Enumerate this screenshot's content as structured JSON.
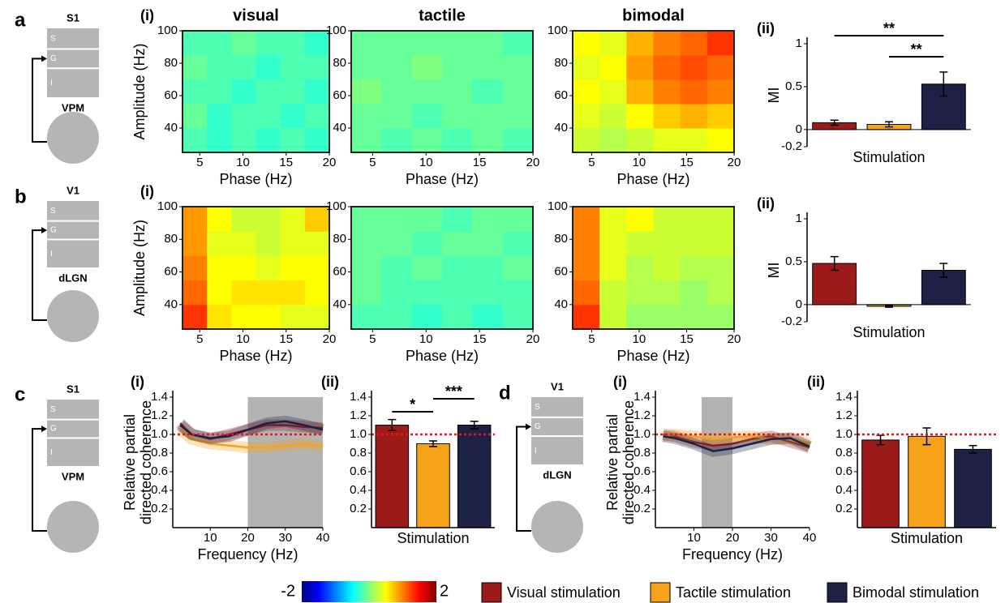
{
  "schematics": [
    {
      "panel": "a",
      "area": "S1",
      "layers": [
        "S",
        "G",
        "I"
      ],
      "nucleus": "VPM"
    },
    {
      "panel": "b",
      "area": "V1",
      "layers": [
        "S",
        "G",
        "I"
      ],
      "nucleus": "dLGN"
    },
    {
      "panel": "c",
      "area": "S1",
      "layers": [
        "S",
        "G",
        "I"
      ],
      "nucleus": "VPM"
    },
    {
      "panel": "d",
      "area": "V1",
      "layers": [
        "S",
        "G",
        "I"
      ],
      "nucleus": "dLGN"
    }
  ],
  "chart_data": [
    {
      "type": "heatmap",
      "title": "visual",
      "panel_label": "(i)",
      "xlabel": "Phase (Hz)",
      "ylabel": "Amplitude (Hz)",
      "xlim": [
        3,
        20
      ],
      "ylim": [
        25,
        100
      ],
      "xticks": [
        5,
        10,
        15,
        20
      ],
      "yticks": [
        40,
        60,
        80,
        100
      ],
      "values": [
        [
          -0.2,
          -0.3,
          -0.2,
          -0.3,
          -0.2,
          -0.3
        ],
        [
          -0.1,
          -0.3,
          -0.2,
          -0.2,
          -0.3,
          -0.2
        ],
        [
          -0.2,
          -0.2,
          -0.3,
          -0.2,
          -0.2,
          -0.3
        ],
        [
          -0.1,
          -0.2,
          -0.2,
          -0.3,
          -0.2,
          -0.2
        ],
        [
          -0.2,
          -0.2,
          -0.1,
          -0.2,
          -0.2,
          -0.3
        ]
      ]
    },
    {
      "type": "heatmap",
      "title": "tactile",
      "xlabel": "Phase (Hz)",
      "xlim": [
        3,
        20
      ],
      "ylim": [
        25,
        100
      ],
      "xticks": [
        5,
        10,
        15,
        20
      ],
      "yticks": [
        40,
        60,
        80,
        100
      ],
      "values": [
        [
          -0.1,
          -0.2,
          -0.1,
          -0.2,
          -0.1,
          -0.2
        ],
        [
          -0.1,
          -0.1,
          -0.2,
          -0.1,
          -0.1,
          -0.1
        ],
        [
          0,
          -0.1,
          -0.1,
          -0.1,
          -0.2,
          -0.1
        ],
        [
          -0.1,
          -0.1,
          0,
          -0.1,
          -0.1,
          -0.1
        ],
        [
          -0.1,
          -0.1,
          -0.1,
          -0.1,
          -0.1,
          -0.2
        ]
      ]
    },
    {
      "type": "heatmap",
      "title": "bimodal",
      "xlabel": "Phase (Hz)",
      "xlim": [
        3,
        20
      ],
      "ylim": [
        25,
        100
      ],
      "xticks": [
        5,
        10,
        15,
        20
      ],
      "yticks": [
        40,
        60,
        80,
        100
      ],
      "values": [
        [
          0.3,
          0.2,
          0.3,
          0.4,
          0.4,
          0.5
        ],
        [
          0.4,
          0.3,
          0.5,
          0.7,
          0.8,
          0.7
        ],
        [
          0.5,
          0.4,
          0.8,
          1.0,
          1.1,
          1.0
        ],
        [
          0.4,
          0.5,
          0.9,
          1.1,
          1.2,
          1.1
        ],
        [
          0.5,
          0.4,
          0.8,
          1.0,
          1.1,
          1.3
        ]
      ]
    },
    {
      "type": "heatmap",
      "panel_label": "(i)",
      "xlabel": "Phase (Hz)",
      "ylabel": "Amplitude (Hz)",
      "xlim": [
        3,
        20
      ],
      "ylim": [
        25,
        100
      ],
      "xticks": [
        5,
        10,
        15,
        20
      ],
      "yticks": [
        40,
        60,
        80,
        100
      ],
      "values": [
        [
          1.3,
          0.6,
          0.5,
          0.5,
          0.4,
          0.4
        ],
        [
          1.1,
          0.5,
          0.6,
          0.6,
          0.6,
          0.5
        ],
        [
          1.0,
          0.5,
          0.5,
          0.4,
          0.5,
          0.5
        ],
        [
          0.9,
          0.4,
          0.4,
          0.3,
          0.4,
          0.4
        ],
        [
          0.9,
          0.5,
          0.3,
          0.3,
          0.4,
          0.7
        ]
      ]
    },
    {
      "type": "heatmap",
      "xlabel": "Phase (Hz)",
      "xlim": [
        3,
        20
      ],
      "ylim": [
        25,
        100
      ],
      "xticks": [
        5,
        10,
        15,
        20
      ],
      "yticks": [
        40,
        60,
        80,
        100
      ],
      "values": [
        [
          -0.2,
          -0.2,
          -0.3,
          -0.2,
          -0.3,
          -0.2
        ],
        [
          -0.1,
          -0.2,
          -0.2,
          -0.2,
          -0.2,
          -0.2
        ],
        [
          -0.1,
          -0.2,
          -0.1,
          -0.2,
          -0.2,
          -0.1
        ],
        [
          -0.1,
          -0.1,
          -0.2,
          -0.1,
          -0.1,
          -0.2
        ],
        [
          -0.1,
          -0.1,
          -0.1,
          -0.2,
          -0.1,
          -0.1
        ]
      ]
    },
    {
      "type": "heatmap",
      "xlabel": "Phase (Hz)",
      "xlim": [
        3,
        20
      ],
      "ylim": [
        25,
        100
      ],
      "xticks": [
        5,
        10,
        15,
        20
      ],
      "yticks": [
        40,
        60,
        80,
        100
      ],
      "values": [
        [
          1.3,
          0.3,
          0.1,
          0.1,
          0.1,
          0.1
        ],
        [
          1.1,
          0.3,
          0.2,
          0.2,
          0.1,
          0.2
        ],
        [
          1.0,
          0.4,
          0.2,
          0.3,
          0.2,
          0.2
        ],
        [
          1.0,
          0.4,
          0.3,
          0.3,
          0.3,
          0.3
        ],
        [
          1.0,
          0.4,
          0.5,
          0.3,
          0.3,
          0.3
        ]
      ]
    },
    {
      "type": "bar",
      "panel_label": "(ii)",
      "xlabel": "Stimulation",
      "ylabel": "MI",
      "ylim": [
        -0.2,
        1
      ],
      "yticks": [
        -0.2,
        0,
        0.5,
        1
      ],
      "values": [
        0.08,
        0.06,
        0.53
      ],
      "errors": [
        0.03,
        0.03,
        0.14
      ],
      "colors": [
        "#9b1b1b",
        "#f7a21b",
        "#1c2145"
      ],
      "significance": [
        {
          "label": "**",
          "from": 0,
          "to": 2
        },
        {
          "label": "**",
          "from": 1,
          "to": 2
        }
      ]
    },
    {
      "type": "bar",
      "panel_label": "(ii)",
      "xlabel": "Stimulation",
      "ylabel": "MI",
      "ylim": [
        -0.2,
        1
      ],
      "yticks": [
        -0.2,
        0,
        0.5,
        1
      ],
      "values": [
        0.48,
        -0.02,
        0.4
      ],
      "errors": [
        0.08,
        0.01,
        0.08
      ],
      "colors": [
        "#9b1b1b",
        "#f7a21b",
        "#1c2145"
      ]
    },
    {
      "type": "line",
      "panel_label": "(i)",
      "xlabel": "Frequency (Hz)",
      "ylabel": [
        "Relative partial",
        "directed coherence"
      ],
      "xlim": [
        0,
        40
      ],
      "ylim": [
        0,
        1.4
      ],
      "xticks": [
        10,
        20,
        30,
        40
      ],
      "yticks": [
        0.2,
        0.4,
        0.6,
        0.8,
        {
          "value": 1,
          "label": "1.0"
        },
        1.2,
        1.4
      ],
      "highlight": [
        20,
        40
      ],
      "reference_line": 1,
      "x": [
        2,
        5,
        10,
        15,
        20,
        25,
        30,
        35,
        40
      ],
      "series": [
        {
          "color": "#9b1b1b",
          "values": [
            1.12,
            1.0,
            0.95,
            1.0,
            1.05,
            1.1,
            1.1,
            1.08,
            1.07
          ]
        },
        {
          "color": "#f7a21b",
          "values": [
            1.05,
            0.95,
            0.9,
            0.88,
            0.86,
            0.86,
            0.88,
            0.9,
            0.87
          ]
        },
        {
          "color": "#1c2145",
          "values": [
            1.1,
            1.0,
            0.96,
            0.98,
            1.05,
            1.12,
            1.14,
            1.1,
            1.05
          ]
        }
      ]
    },
    {
      "type": "bar",
      "panel_label": "(ii)",
      "xlabel": "Stimulation",
      "ylim": [
        0,
        1.4
      ],
      "yticks": [
        0.2,
        0.4,
        0.6,
        0.8,
        {
          "value": 1,
          "label": "1.0"
        },
        1.2,
        1.4
      ],
      "reference_line": 1,
      "values": [
        1.1,
        0.9,
        1.1
      ],
      "errors": [
        0.06,
        0.03,
        0.04
      ],
      "colors": [
        "#9b1b1b",
        "#f7a21b",
        "#1c2145"
      ],
      "significance": [
        {
          "label": "*",
          "from": 0,
          "to": 1
        },
        {
          "label": "***",
          "from": 1,
          "to": 2
        }
      ]
    },
    {
      "type": "line",
      "panel_label": "(i)",
      "xlabel": "Frequency (Hz)",
      "ylabel": [
        "Relative partial",
        "directed coherence"
      ],
      "xlim": [
        0,
        40
      ],
      "ylim": [
        0,
        1.4
      ],
      "xticks": [
        10,
        20,
        30,
        40
      ],
      "yticks": [
        0.2,
        0.4,
        0.6,
        0.8,
        {
          "value": 1,
          "label": "1.0"
        },
        1.2,
        1.4
      ],
      "highlight": [
        12,
        20
      ],
      "reference_line": 1,
      "x": [
        2,
        5,
        10,
        15,
        20,
        25,
        30,
        35,
        40
      ],
      "series": [
        {
          "color": "#9b1b1b",
          "values": [
            1.0,
            0.98,
            0.92,
            0.88,
            0.9,
            0.95,
            0.98,
            0.92,
            0.86
          ]
        },
        {
          "color": "#f7a21b",
          "values": [
            0.98,
            1.0,
            0.98,
            0.95,
            0.97,
            0.98,
            0.95,
            0.96,
            0.9
          ]
        },
        {
          "color": "#1c2145",
          "values": [
            0.98,
            0.96,
            0.9,
            0.82,
            0.85,
            0.9,
            0.95,
            0.96,
            0.87
          ]
        }
      ]
    },
    {
      "type": "bar",
      "panel_label": "(ii)",
      "xlabel": "Stimulation",
      "ylim": [
        0,
        1.4
      ],
      "yticks": [
        0.2,
        0.4,
        0.6,
        0.8,
        {
          "value": 1,
          "label": "1.0"
        },
        1.2,
        1.4
      ],
      "reference_line": 1,
      "values": [
        0.94,
        0.98,
        0.84
      ],
      "errors": [
        0.05,
        0.09,
        0.04
      ],
      "colors": [
        "#9b1b1b",
        "#f7a21b",
        "#1c2145"
      ]
    }
  ],
  "legend": {
    "colorbar": {
      "min": -2,
      "max": 2
    },
    "entries": [
      {
        "name": "Visual stimulation",
        "color": "#9b1b1b"
      },
      {
        "name": "Tactile stimulation",
        "color": "#f7a21b"
      },
      {
        "name": "Bimodal stimulation",
        "color": "#1c2145"
      }
    ]
  }
}
